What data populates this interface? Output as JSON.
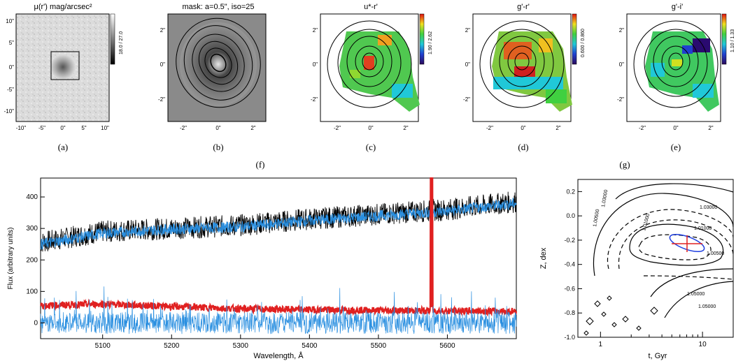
{
  "panels": {
    "a": {
      "title": "μ(r') mag/arcsec²",
      "cbar": "18.0 / 27.0",
      "x_ticks": [
        "-10\"",
        "-5\"",
        "0\"",
        "5\"",
        "10\""
      ],
      "y_ticks": [
        "10\"",
        "5\"",
        "0\"",
        "-5\"",
        "-10\""
      ],
      "caption": "(a)"
    },
    "b": {
      "title": "mask: a=0.5\", iso=25",
      "x_ticks": [
        "-2\"",
        "0\"",
        "2\""
      ],
      "y_ticks": [
        "2\"",
        "0\"",
        "-2\""
      ],
      "caption": "(b)"
    },
    "c": {
      "title": "u*-r'",
      "cbar": "1.90 / 2.62",
      "x_ticks": [
        "-2\"",
        "0\"",
        "2\""
      ],
      "y_ticks": [
        "2\"",
        "0\"",
        "-2\""
      ],
      "caption": "(c)"
    },
    "d": {
      "title": "g'-r'",
      "cbar": "0.600 / 0.860",
      "x_ticks": [
        "-2\"",
        "0\"",
        "2\""
      ],
      "y_ticks": [
        "2\"",
        "0\"",
        "-2\""
      ],
      "caption": "(d)"
    },
    "e": {
      "title": "g'-i'",
      "cbar": "1.10 / 1.33",
      "x_ticks": [
        "-2\"",
        "0\"",
        "2\""
      ],
      "y_ticks": [
        "2\"",
        "0\"",
        "-2\""
      ],
      "caption": "(e)"
    },
    "caption_f": "(f)",
    "caption_g": "(g)"
  },
  "chart_data": [
    {
      "type": "line",
      "xlabel": "Wavelength, Å",
      "ylabel": "Flux (arbitrary units)",
      "xlim": [
        5010,
        5700
      ],
      "ylim": [
        -50,
        460
      ],
      "x_ticks": [
        "5100",
        "5200",
        "5300",
        "5400",
        "5500",
        "5600"
      ],
      "y_ticks": [
        "0",
        "100",
        "200",
        "300",
        "400"
      ],
      "series": [
        {
          "color": "#000000",
          "desc": "observed spectrum",
          "x": [
            5010,
            5100,
            5200,
            5300,
            5400,
            5500,
            5600,
            5700
          ],
          "y": [
            255,
            290,
            300,
            310,
            330,
            345,
            360,
            385
          ]
        },
        {
          "color": "#2a8fe0",
          "desc": "model fit",
          "x": [
            5010,
            5100,
            5200,
            5300,
            5400,
            5500,
            5600,
            5700
          ],
          "y": [
            250,
            285,
            298,
            305,
            325,
            340,
            355,
            380
          ]
        },
        {
          "color": "#e02020",
          "desc": "error",
          "x": [
            5010,
            5100,
            5200,
            5300,
            5400,
            5500,
            5600,
            5700
          ],
          "y": [
            55,
            60,
            52,
            45,
            42,
            40,
            38,
            37
          ]
        },
        {
          "color": "#2a8fe0",
          "desc": "residuals",
          "x": [
            5010,
            5700
          ],
          "y": [
            0,
            0
          ]
        }
      ]
    },
    {
      "type": "contour",
      "xlabel": "t, Gyr",
      "ylabel": "Z, dex",
      "xlim": [
        0.6,
        20
      ],
      "ylim": [
        -1.0,
        0.3
      ],
      "x_scale": "log",
      "x_ticks": [
        "1",
        "10"
      ],
      "y_ticks": [
        "0.2",
        "0.0",
        "-0.2",
        "-0.4",
        "-0.6",
        "-0.8",
        "-1.0"
      ],
      "contour_labels": [
        "1.03000",
        "1.01000",
        "1.00500",
        "1.03000",
        "1.05000",
        "1.05000",
        "1.01000",
        "1.00500"
      ],
      "best_fit": {
        "t": 7.0,
        "Z": -0.2
      }
    }
  ]
}
